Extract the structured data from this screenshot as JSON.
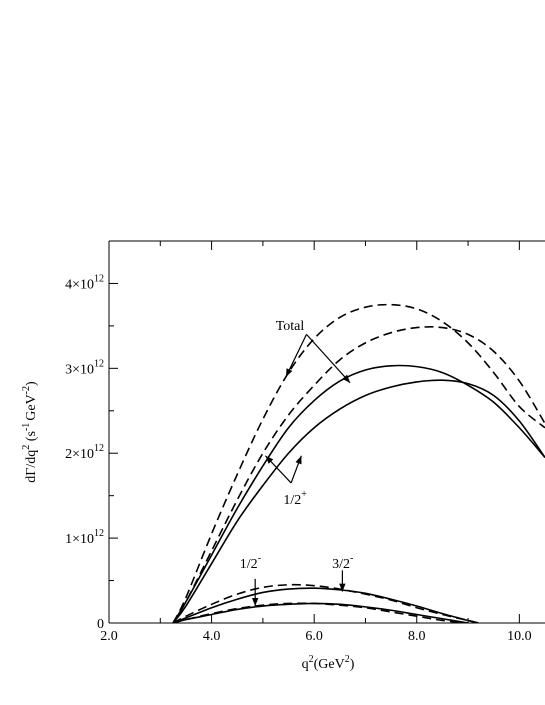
{
  "chart_data": {
    "type": "line",
    "xlabel": "q",
    "xlabel_sup": "2",
    "xlabel_rest": "(GeV",
    "xlabel_sup2": "2",
    "xlabel_close": ")",
    "ylabel": "dΓ/dq",
    "ylabel_sup1": "2",
    "ylabel_mid": " (s",
    "ylabel_sup2": "-1",
    "ylabel_mid2": "GeV",
    "ylabel_sup3": "-2",
    "ylabel_close": ")",
    "xlim": [
      2.0,
      10.5
    ],
    "ylim": [
      0,
      4500000000000.0
    ],
    "x_ticks": [
      {
        "value": 2.0,
        "label": "2.0"
      },
      {
        "value": 4.0,
        "label": "4.0"
      },
      {
        "value": 6.0,
        "label": "6.0"
      },
      {
        "value": 8.0,
        "label": "8.0"
      },
      {
        "value": 10.0,
        "label": "10.0"
      }
    ],
    "y_ticks": [
      {
        "value": 0,
        "label": "0",
        "exp": ""
      },
      {
        "value": 1000000000000.0,
        "label": "1×10",
        "exp": "12"
      },
      {
        "value": 2000000000000.0,
        "label": "2×10",
        "exp": "12"
      },
      {
        "value": 3000000000000.0,
        "label": "3×10",
        "exp": "12"
      },
      {
        "value": 4000000000000.0,
        "label": "4×10",
        "exp": "12"
      }
    ],
    "series": [
      {
        "style": "dashed",
        "group": "total",
        "x": [
          3.25,
          3.5,
          4.0,
          4.5,
          5.0,
          5.5,
          6.0,
          6.5,
          7.0,
          7.5,
          8.0,
          8.5,
          9.0,
          9.5,
          10.0,
          10.5
        ],
        "y": [
          0,
          300000000000.0,
          1050000000000.0,
          1750000000000.0,
          2400000000000.0,
          2950000000000.0,
          3350000000000.0,
          3600000000000.0,
          3720000000000.0,
          3750000000000.0,
          3700000000000.0,
          3550000000000.0,
          3300000000000.0,
          2950000000000.0,
          2550000000000.0,
          2300000000000.0
        ]
      },
      {
        "style": "dashed",
        "group": "total",
        "x": [
          3.25,
          3.5,
          4.0,
          4.5,
          5.0,
          5.5,
          6.0,
          6.5,
          7.0,
          7.5,
          8.0,
          8.5,
          9.0,
          9.5,
          10.0,
          10.5
        ],
        "y": [
          0,
          250000000000.0,
          850000000000.0,
          1450000000000.0,
          2000000000000.0,
          2450000000000.0,
          2800000000000.0,
          3100000000000.0,
          3300000000000.0,
          3420000000000.0,
          3480000000000.0,
          3480000000000.0,
          3400000000000.0,
          3200000000000.0,
          2850000000000.0,
          2350000000000.0
        ]
      },
      {
        "style": "solid",
        "group": "half_plus",
        "x": [
          3.25,
          3.5,
          4.0,
          4.5,
          5.0,
          5.5,
          6.0,
          6.5,
          7.0,
          7.5,
          8.0,
          8.5,
          9.0,
          9.5,
          10.0,
          10.5
        ],
        "y": [
          0,
          250000000000.0,
          800000000000.0,
          1350000000000.0,
          1850000000000.0,
          2300000000000.0,
          2620000000000.0,
          2850000000000.0,
          2980000000000.0,
          3030000000000.0,
          3020000000000.0,
          2950000000000.0,
          2800000000000.0,
          2600000000000.0,
          2300000000000.0,
          1950000000000.0
        ]
      },
      {
        "style": "solid",
        "group": "half_plus",
        "x": [
          3.25,
          3.5,
          4.0,
          4.5,
          5.0,
          5.5,
          6.0,
          6.5,
          7.0,
          7.5,
          8.0,
          8.5,
          9.0,
          9.5,
          10.0,
          10.5
        ],
        "y": [
          0,
          200000000000.0,
          700000000000.0,
          1200000000000.0,
          1620000000000.0,
          2000000000000.0,
          2300000000000.0,
          2520000000000.0,
          2680000000000.0,
          2780000000000.0,
          2840000000000.0,
          2860000000000.0,
          2820000000000.0,
          2680000000000.0,
          2380000000000.0,
          1950000000000.0
        ]
      },
      {
        "style": "dashed",
        "group": "small",
        "x": [
          3.25,
          3.5,
          4.0,
          4.5,
          5.0,
          5.5,
          6.0,
          6.5,
          7.0,
          7.5,
          8.0,
          8.5,
          9.0,
          9.2
        ],
        "y": [
          0,
          80000000000.0,
          220000000000.0,
          340000000000.0,
          420000000000.0,
          450000000000.0,
          440000000000.0,
          400000000000.0,
          340000000000.0,
          270000000000.0,
          180000000000.0,
          100000000000.0,
          30000000000.0,
          0
        ]
      },
      {
        "style": "solid",
        "group": "small",
        "x": [
          3.25,
          3.5,
          4.0,
          4.5,
          5.0,
          5.5,
          6.0,
          6.5,
          7.0,
          7.5,
          8.0,
          8.5,
          9.0,
          9.2
        ],
        "y": [
          0,
          60000000000.0,
          180000000000.0,
          280000000000.0,
          360000000000.0,
          400000000000.0,
          410000000000.0,
          390000000000.0,
          350000000000.0,
          280000000000.0,
          200000000000.0,
          110000000000.0,
          30000000000.0,
          0
        ]
      },
      {
        "style": "dashed",
        "group": "small",
        "x": [
          3.25,
          3.5,
          4.0,
          4.5,
          5.0,
          5.5,
          6.0,
          6.5,
          7.0,
          7.5,
          8.0,
          8.5,
          9.0
        ],
        "y": [
          0,
          40000000000.0,
          110000000000.0,
          170000000000.0,
          210000000000.0,
          230000000000.0,
          230000000000.0,
          210000000000.0,
          180000000000.0,
          130000000000.0,
          80000000000.0,
          30000000000.0,
          0
        ]
      },
      {
        "style": "solid",
        "group": "small",
        "x": [
          3.25,
          3.5,
          4.0,
          4.5,
          5.0,
          5.5,
          6.0,
          6.5,
          7.0,
          7.5,
          8.0,
          8.5,
          9.0
        ],
        "y": [
          0,
          40000000000.0,
          100000000000.0,
          160000000000.0,
          200000000000.0,
          220000000000.0,
          230000000000.0,
          220000000000.0,
          190000000000.0,
          150000000000.0,
          100000000000.0,
          50000000000.0,
          0
        ]
      }
    ],
    "annotations": [
      {
        "id": "total",
        "text": "Total",
        "sup": "",
        "x": 5.25,
        "y": 3450000000000.0,
        "arrows": [
          {
            "fx": 5.85,
            "fy": 3400000000000.0,
            "tx": 5.45,
            "ty": 2900000000000.0
          },
          {
            "fx": 5.85,
            "fy": 3400000000000.0,
            "tx": 6.7,
            "ty": 2830000000000.0
          }
        ]
      },
      {
        "id": "half_plus",
        "text": "1/2",
        "sup": "+",
        "x": 5.4,
        "y": 1400000000000.0,
        "arrows": [
          {
            "fx": 5.55,
            "fy": 1650000000000.0,
            "tx": 5.05,
            "ty": 1970000000000.0
          },
          {
            "fx": 5.55,
            "fy": 1650000000000.0,
            "tx": 5.75,
            "ty": 1970000000000.0
          }
        ]
      },
      {
        "id": "half_minus",
        "text": "1/2",
        "sup": "-",
        "x": 4.55,
        "y": 650000000000.0,
        "arrows": [
          {
            "fx": 4.85,
            "fy": 520000000000.0,
            "tx": 4.85,
            "ty": 200000000000.0
          }
        ]
      },
      {
        "id": "three_half_minus",
        "text": "3/2",
        "sup": "-",
        "x": 6.35,
        "y": 650000000000.0,
        "arrows": [
          {
            "fx": 6.55,
            "fy": 620000000000.0,
            "tx": 6.55,
            "ty": 370000000000.0
          }
        ]
      }
    ]
  }
}
